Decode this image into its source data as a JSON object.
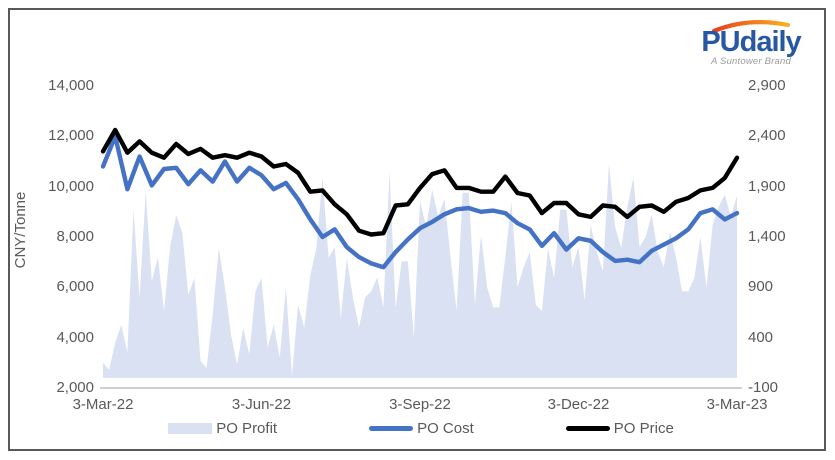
{
  "logo": {
    "brand": "PUdaily",
    "tagline": "A Suntower Brand",
    "brand_color": "#2857A4",
    "arc_color_start": "#E8401C",
    "arc_color_end": "#F9B021"
  },
  "chart_data": {
    "type": "combo",
    "title": "",
    "x_axis": {
      "tick_labels": [
        "3-Mar-22",
        "3-Jun-22",
        "3-Sep-22",
        "3-Dec-22",
        "3-Mar-23"
      ],
      "start": "3-Mar-22",
      "end": "3-Mar-23",
      "interval": "weekly"
    },
    "left_axis": {
      "title": "CNY/Tonne",
      "min": 2000,
      "max": 14000,
      "tick_values": [
        14000,
        12000,
        10000,
        8000,
        6000,
        4000,
        2000
      ],
      "tick_labels": [
        "14,000",
        "12,000",
        "10,000",
        "8,000",
        "6,000",
        "4,000",
        "2,000"
      ]
    },
    "right_axis": {
      "title": "",
      "min": -100,
      "max": 2900,
      "tick_values": [
        2900,
        2400,
        1900,
        1400,
        900,
        400,
        -100
      ],
      "tick_labels": [
        "2,900",
        "2,400",
        "1,900",
        "1,400",
        "900",
        "400",
        "-100"
      ]
    },
    "grid": false,
    "legend_position": "bottom",
    "axis_line_color": "#BFBFBF",
    "series": [
      {
        "name": "PO Profit",
        "type": "area",
        "axis": "right",
        "color": "#D9E1F2",
        "baseline": 0,
        "values": [
          150,
          80,
          350,
          530,
          250,
          1670,
          800,
          1860,
          960,
          1200,
          665,
          1300,
          1620,
          1440,
          825,
          990,
          170,
          100,
          630,
          1290,
          900,
          430,
          130,
          500,
          230,
          860,
          990,
          300,
          530,
          200,
          900,
          20,
          725,
          500,
          1020,
          1290,
          1990,
          1190,
          1300,
          595,
          1190,
          800,
          500,
          800,
          860,
          1000,
          700,
          2050,
          695,
          1160,
          1160,
          400,
          1760,
          1500,
          1870,
          1600,
          1780,
          1200,
          665,
          1840,
          1840,
          725,
          1420,
          900,
          700,
          700,
          1200,
          1750,
          900,
          1100,
          1250,
          725,
          665,
          1290,
          990,
          1670,
          1670,
          1100,
          1300,
          765,
          1520,
          1250,
          1060,
          2130,
          1500,
          1290,
          1700,
          1990,
          1300,
          1400,
          1620,
          1250,
          1100,
          1450,
          1200,
          860,
          860,
          990,
          1400,
          895,
          1520,
          1700,
          1820,
          1600,
          1810
        ]
      },
      {
        "name": "PO Cost",
        "type": "line",
        "axis": "left",
        "color": "#4472C4",
        "values": [
          10800,
          12000,
          9900,
          11200,
          10050,
          10700,
          10750,
          10100,
          10650,
          10200,
          11000,
          10200,
          10750,
          10450,
          9900,
          10150,
          9500,
          8700,
          8000,
          8300,
          7600,
          7200,
          6950,
          6800,
          7400,
          7900,
          8350,
          8600,
          8900,
          9100,
          9150,
          9000,
          9050,
          8950,
          8550,
          8300,
          7650,
          8150,
          7500,
          7950,
          7850,
          7400,
          7050,
          7100,
          7000,
          7450,
          7700,
          7950,
          8300,
          8950,
          9100,
          8700,
          8950
        ]
      },
      {
        "name": "PO Price",
        "type": "line",
        "axis": "left",
        "color": "#000000",
        "values": [
          11400,
          12250,
          11350,
          11800,
          11350,
          11150,
          11700,
          11300,
          11500,
          11150,
          11250,
          11150,
          11350,
          11200,
          10800,
          10900,
          10550,
          9800,
          9850,
          9300,
          8900,
          8250,
          8100,
          8150,
          9250,
          9300,
          9950,
          10500,
          10650,
          9950,
          9950,
          9800,
          9800,
          10400,
          9750,
          9650,
          8950,
          9350,
          9350,
          8900,
          8800,
          9250,
          9200,
          8800,
          9200,
          9250,
          9000,
          9400,
          9550,
          9850,
          9950,
          10350,
          11150
        ]
      }
    ]
  }
}
